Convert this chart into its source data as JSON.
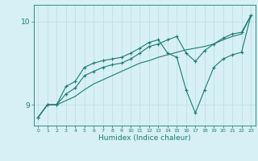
{
  "xlabel": "Humidex (Indice chaleur)",
  "bg_color": "#d6f0f5",
  "grid_color": "#b8dde5",
  "line_color": "#1e7a70",
  "xlim": [
    -0.5,
    23.5
  ],
  "ylim": [
    8.75,
    10.2
  ],
  "xticks": [
    0,
    1,
    2,
    3,
    4,
    5,
    6,
    7,
    8,
    9,
    10,
    11,
    12,
    13,
    14,
    15,
    16,
    17,
    18,
    19,
    20,
    21,
    22,
    23
  ],
  "yticks": [
    9,
    10
  ],
  "line1_x": [
    0,
    1,
    2,
    3,
    4,
    5,
    6,
    7,
    8,
    9,
    10,
    11,
    12,
    13,
    14,
    15,
    16,
    17,
    18,
    19,
    20,
    21,
    22,
    23
  ],
  "line1_y": [
    8.85,
    9.0,
    9.0,
    9.22,
    9.28,
    9.45,
    9.5,
    9.53,
    9.55,
    9.57,
    9.62,
    9.68,
    9.75,
    9.78,
    9.62,
    9.57,
    9.18,
    8.9,
    9.18,
    9.45,
    9.55,
    9.6,
    9.63,
    10.07
  ],
  "line2_x": [
    0,
    1,
    2,
    3,
    4,
    5,
    6,
    7,
    8,
    9,
    10,
    11,
    12,
    13,
    14,
    15,
    16,
    17,
    18,
    19,
    20,
    21,
    22,
    23
  ],
  "line2_y": [
    8.85,
    9.0,
    9.0,
    9.13,
    9.2,
    9.35,
    9.4,
    9.45,
    9.48,
    9.5,
    9.55,
    9.62,
    9.7,
    9.73,
    9.78,
    9.82,
    9.62,
    9.52,
    9.65,
    9.73,
    9.8,
    9.85,
    9.87,
    10.07
  ],
  "line3_x": [
    0,
    1,
    2,
    3,
    4,
    5,
    6,
    7,
    8,
    9,
    10,
    11,
    12,
    13,
    14,
    15,
    16,
    17,
    18,
    19,
    20,
    21,
    22,
    23
  ],
  "line3_y": [
    8.85,
    9.0,
    9.0,
    9.05,
    9.1,
    9.18,
    9.25,
    9.3,
    9.35,
    9.4,
    9.45,
    9.5,
    9.53,
    9.57,
    9.6,
    9.63,
    9.66,
    9.68,
    9.7,
    9.73,
    9.78,
    9.82,
    9.85,
    10.07
  ]
}
